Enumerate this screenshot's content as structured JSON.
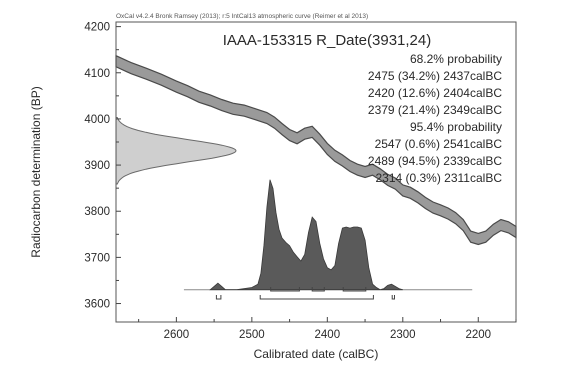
{
  "chart_data": {
    "type": "area",
    "credit": "OxCal v4.2.4 Bronk Ramsey (2013); r:5 IntCal13 atmospheric curve (Reimer et al 2013)",
    "title": "IAAA-153315 R_Date(3931,24)",
    "xlabel": "Calibrated date (calBC)",
    "ylabel": "Radiocarbon determination (BP)",
    "xlim": [
      2680,
      2150
    ],
    "ylim": [
      3560,
      4210
    ],
    "x_ticks": [
      "2600",
      "2500",
      "2400",
      "2300",
      "2200"
    ],
    "x_tick_values": [
      2600,
      2500,
      2400,
      2300,
      2200
    ],
    "y_ticks": [
      "3600",
      "3700",
      "3800",
      "3900",
      "4000",
      "4100",
      "4200"
    ],
    "y_tick_values": [
      3600,
      3700,
      3800,
      3900,
      4000,
      4100,
      4200
    ],
    "probability_text": [
      "68.2% probability",
      "2475 (34.2%) 2437calBC",
      "2420 (12.6%) 2404calBC",
      "2379 (21.4%) 2349calBC",
      "95.4% probability",
      "2547 (0.6%) 2541calBC",
      "2489 (94.5%) 2339calBC",
      "2314 (0.3%) 2311calBC"
    ],
    "ranges_68": [
      [
        2475,
        2437
      ],
      [
        2420,
        2404
      ],
      [
        2379,
        2349
      ]
    ],
    "ranges_95": [
      [
        2547,
        2541
      ],
      [
        2489,
        2339
      ],
      [
        2314,
        2311
      ]
    ],
    "calibration_curve": {
      "x": [
        2680,
        2660,
        2640,
        2620,
        2600,
        2585,
        2570,
        2555,
        2540,
        2525,
        2510,
        2495,
        2480,
        2470,
        2460,
        2450,
        2440,
        2430,
        2420,
        2410,
        2400,
        2390,
        2380,
        2370,
        2360,
        2350,
        2340,
        2330,
        2320,
        2310,
        2300,
        2290,
        2280,
        2270,
        2260,
        2250,
        2240,
        2230,
        2220,
        2210,
        2200,
        2190,
        2180,
        2170,
        2160,
        2150
      ],
      "y": [
        4125,
        4110,
        4098,
        4085,
        4070,
        4060,
        4048,
        4040,
        4030,
        4022,
        4018,
        4010,
        4002,
        3992,
        3978,
        3965,
        3958,
        3968,
        3972,
        3955,
        3935,
        3920,
        3910,
        3898,
        3890,
        3885,
        3890,
        3880,
        3868,
        3860,
        3845,
        3840,
        3830,
        3818,
        3808,
        3802,
        3795,
        3785,
        3770,
        3745,
        3740,
        3745,
        3760,
        3770,
        3765,
        3755
      ],
      "half_width": 12
    },
    "rc_distribution": {
      "mean": 3931,
      "sigma": 24
    },
    "posterior": {
      "x": [
        2555,
        2550,
        2545,
        2540,
        2535,
        2520,
        2500,
        2492,
        2488,
        2484,
        2480,
        2476,
        2472,
        2468,
        2464,
        2460,
        2455,
        2450,
        2445,
        2440,
        2435,
        2430,
        2425,
        2420,
        2415,
        2410,
        2405,
        2400,
        2395,
        2390,
        2385,
        2380,
        2375,
        2370,
        2365,
        2360,
        2355,
        2350,
        2345,
        2340,
        2335,
        2330,
        2325,
        2320,
        2315,
        2310,
        2305,
        2300
      ],
      "y": [
        0,
        0.03,
        0.06,
        0.03,
        0,
        0,
        0.02,
        0.05,
        0.15,
        0.4,
        0.75,
        1.0,
        0.92,
        0.7,
        0.55,
        0.47,
        0.43,
        0.4,
        0.34,
        0.3,
        0.26,
        0.32,
        0.52,
        0.66,
        0.62,
        0.42,
        0.28,
        0.2,
        0.18,
        0.22,
        0.42,
        0.56,
        0.57,
        0.56,
        0.57,
        0.57,
        0.56,
        0.45,
        0.2,
        0.05,
        0.02,
        0,
        0.01,
        0.04,
        0.05,
        0.03,
        0.01,
        0
      ]
    }
  }
}
